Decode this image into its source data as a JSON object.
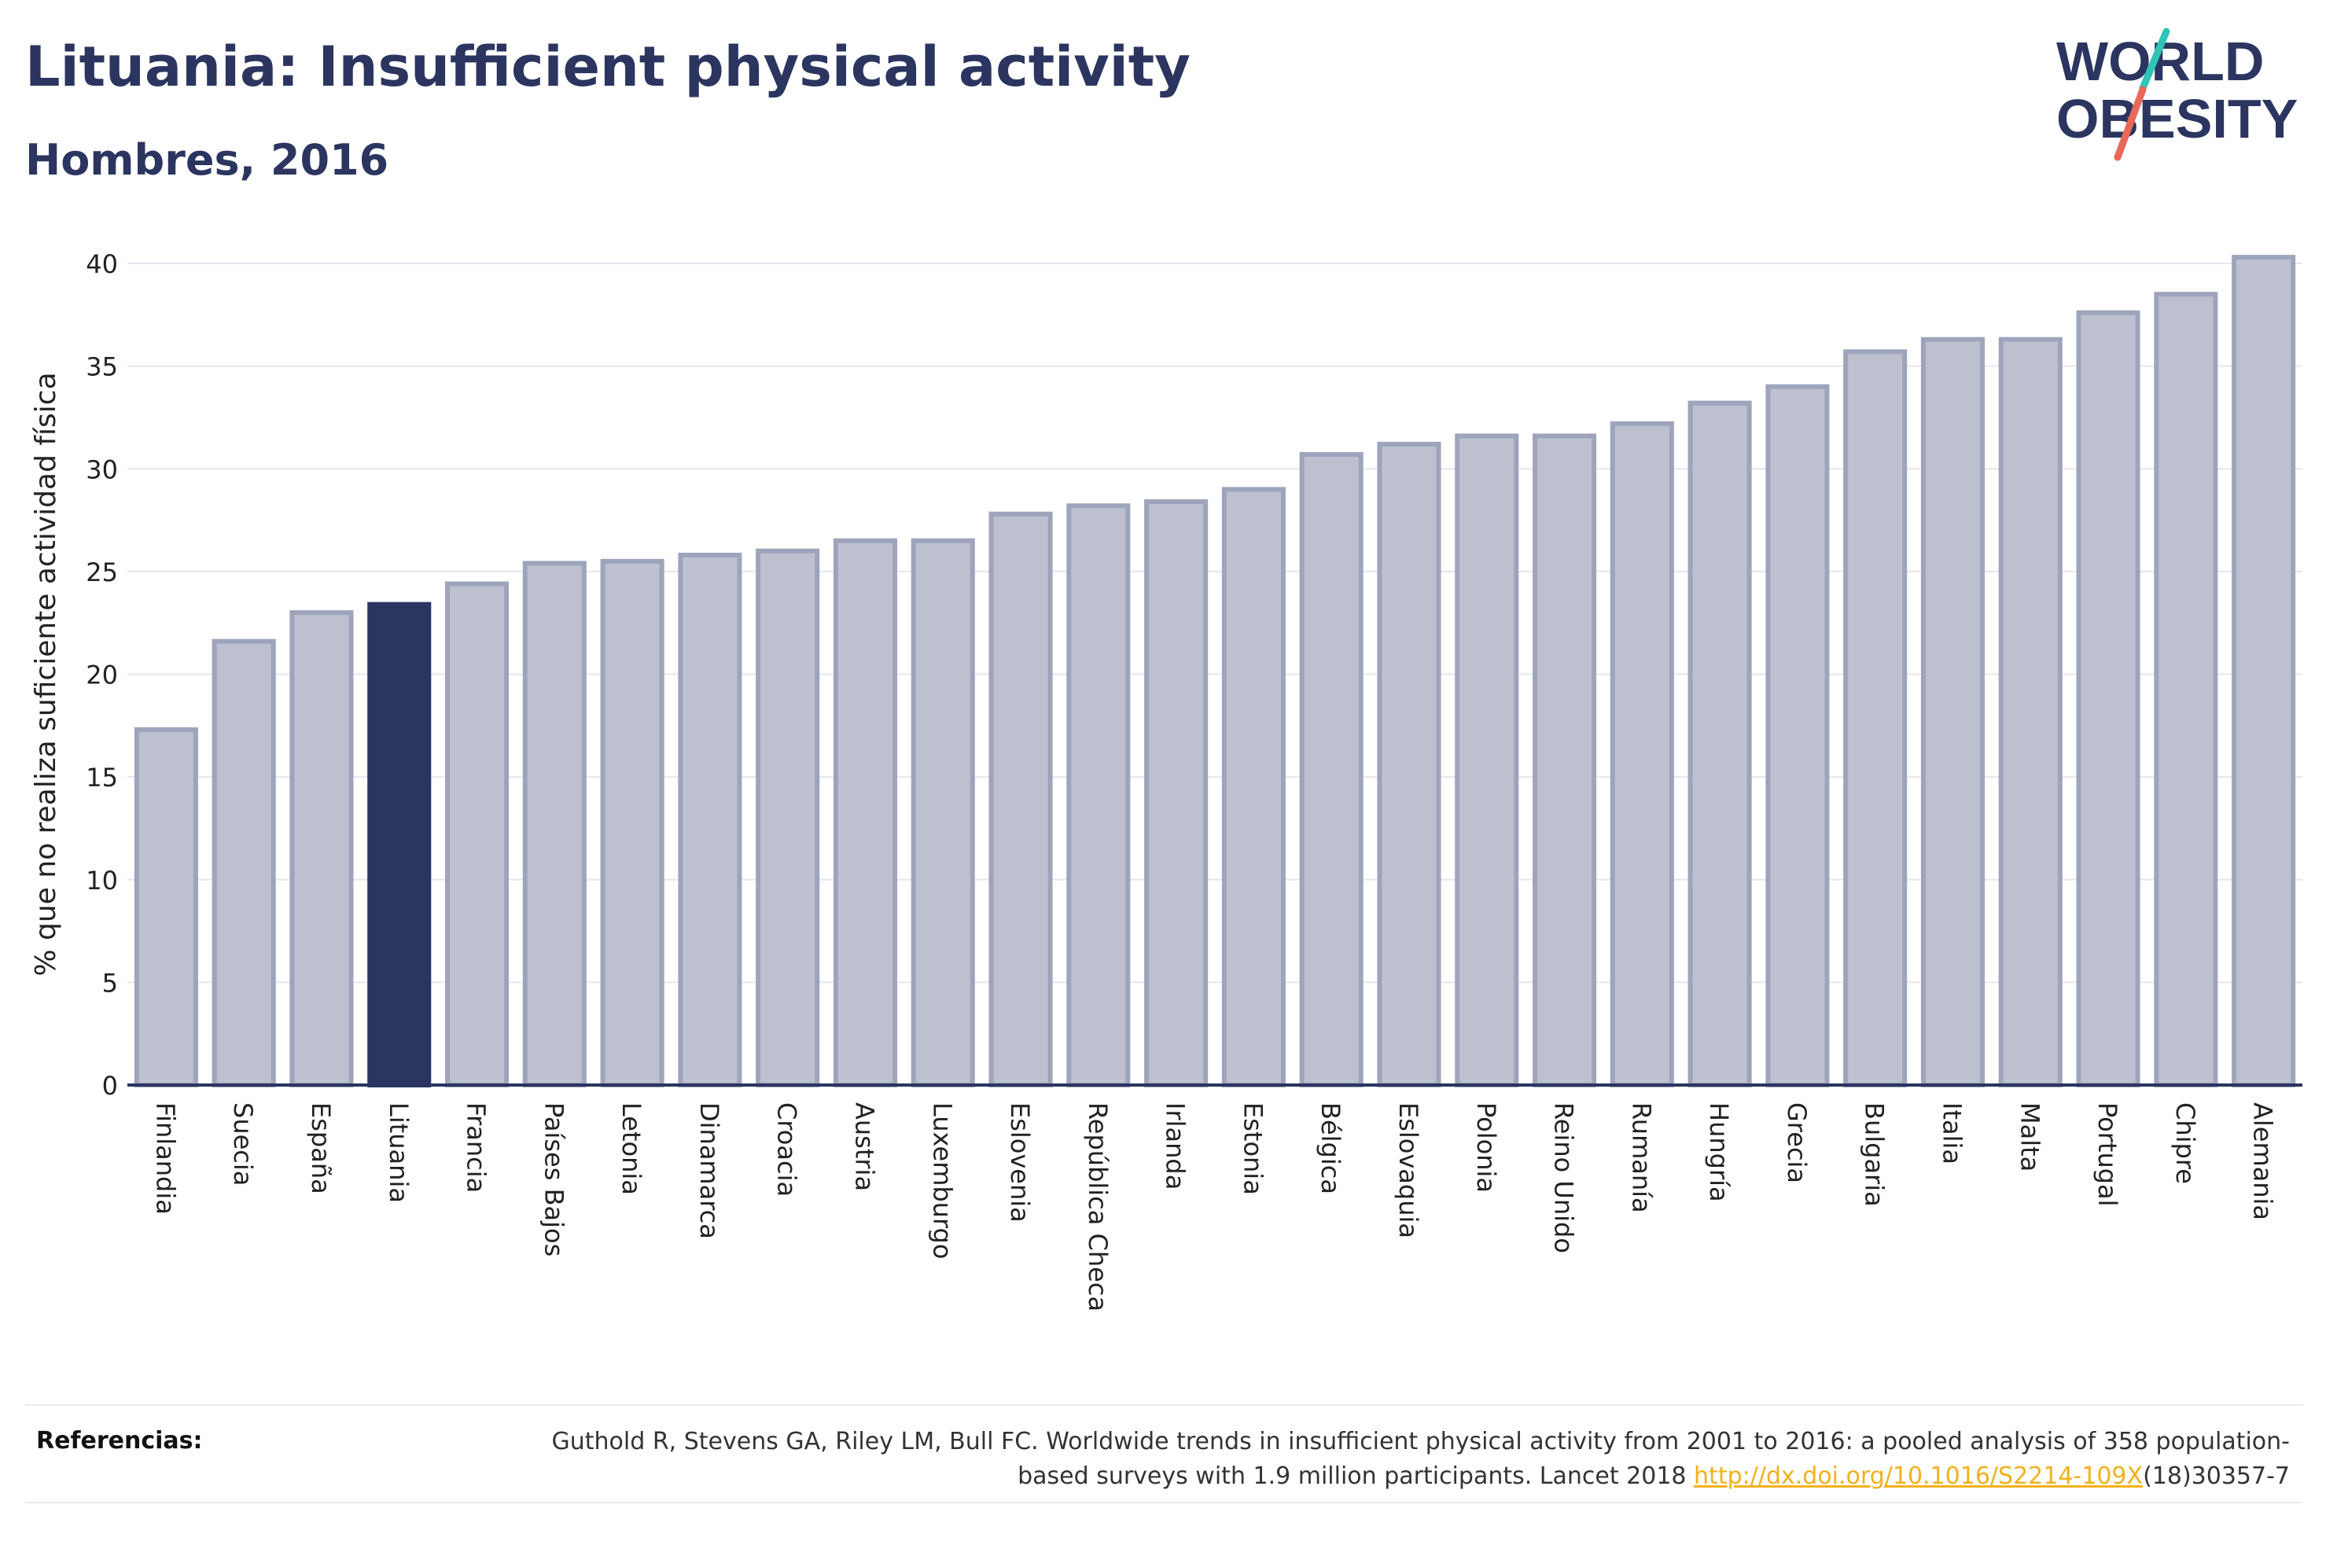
{
  "header": {
    "title": "Lituania: Insufficient physical activity",
    "subtitle": "Hombres, 2016"
  },
  "logo": {
    "line1": "WORLD",
    "line2": "OBESITY",
    "slash_colors": [
      "#2ec4b6",
      "#e8685a"
    ]
  },
  "colors": {
    "bar": "#bdc1cf",
    "bar_stroke": "#9ea4bb",
    "highlight": "#2b3560",
    "text": "#2b3560",
    "grid": "#e6e6ee",
    "link": "#f2b11c"
  },
  "chart_data": {
    "type": "bar",
    "title": "",
    "xlabel": "",
    "ylabel": "% que no realiza suficiente actividad física",
    "ylim": [
      0,
      40
    ],
    "yticks": [
      0,
      5,
      10,
      15,
      20,
      25,
      30,
      35,
      40
    ],
    "grid": true,
    "highlight": "Lituania",
    "categories": [
      "Finlandia",
      "Suecia",
      "España",
      "Lituania",
      "Francia",
      "Países Bajos",
      "Letonia",
      "Dinamarca",
      "Croacia",
      "Austria",
      "Luxemburgo",
      "Eslovenia",
      "República Checa",
      "Irlanda",
      "Estonia",
      "Bélgica",
      "Eslovaquia",
      "Polonia",
      "Reino Unido",
      "Rumanía",
      "Hungría",
      "Grecia",
      "Bulgaria",
      "Italia",
      "Malta",
      "Portugal",
      "Chipre",
      "Alemania"
    ],
    "values": [
      17.3,
      21.6,
      23.0,
      23.4,
      24.4,
      25.4,
      25.5,
      25.8,
      26.0,
      26.5,
      26.5,
      27.8,
      28.2,
      28.4,
      29.0,
      30.7,
      31.2,
      31.6,
      31.6,
      32.2,
      33.2,
      34.0,
      35.7,
      36.3,
      36.3,
      37.6,
      38.5,
      40.3
    ]
  },
  "references": {
    "label": "Referencias:",
    "text_before": "Guthold R, Stevens GA, Riley LM, Bull FC. Worldwide trends in insufficient physical activity from 2001 to 2016: a pooled analysis of 358 population-based surveys with 1.9 million participants. Lancet 2018 ",
    "link": "http://dx.doi.org/10.1016/S2214-109X",
    "text_after": "(18)30357-7"
  }
}
